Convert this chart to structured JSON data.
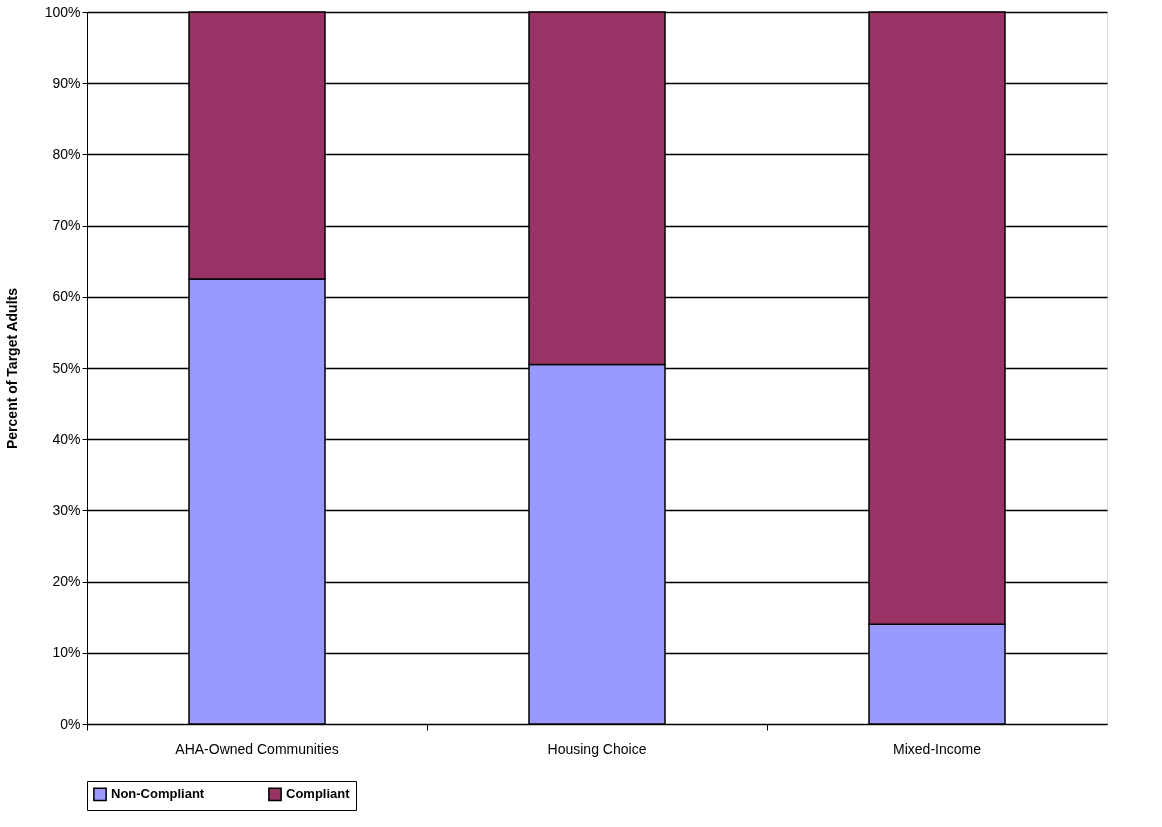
{
  "chart_data": {
    "type": "bar",
    "stacked": true,
    "ylabel": "Percent of Target Adults",
    "categories": [
      "AHA-Owned Communities",
      "Housing Choice",
      "Mixed-Income"
    ],
    "series": [
      {
        "name": "Non-Compliant",
        "color": "#9999ff",
        "values": [
          62.5,
          50.5,
          14
        ]
      },
      {
        "name": "Compliant",
        "color": "#993366",
        "values": [
          37.5,
          49.5,
          86
        ]
      }
    ],
    "ylim": [
      0,
      100
    ],
    "yticks": [
      {
        "value": 0,
        "label": "0%"
      },
      {
        "value": 10,
        "label": "10%"
      },
      {
        "value": 20,
        "label": "20%"
      },
      {
        "value": 30,
        "label": "30%"
      },
      {
        "value": 40,
        "label": "40%"
      },
      {
        "value": 50,
        "label": "50%"
      },
      {
        "value": 60,
        "label": "60%"
      },
      {
        "value": 70,
        "label": "70%"
      },
      {
        "value": 80,
        "label": "80%"
      },
      {
        "value": 90,
        "label": "90%"
      },
      {
        "value": 100,
        "label": "100%"
      }
    ],
    "grid": "y",
    "legend": "bottom"
  }
}
